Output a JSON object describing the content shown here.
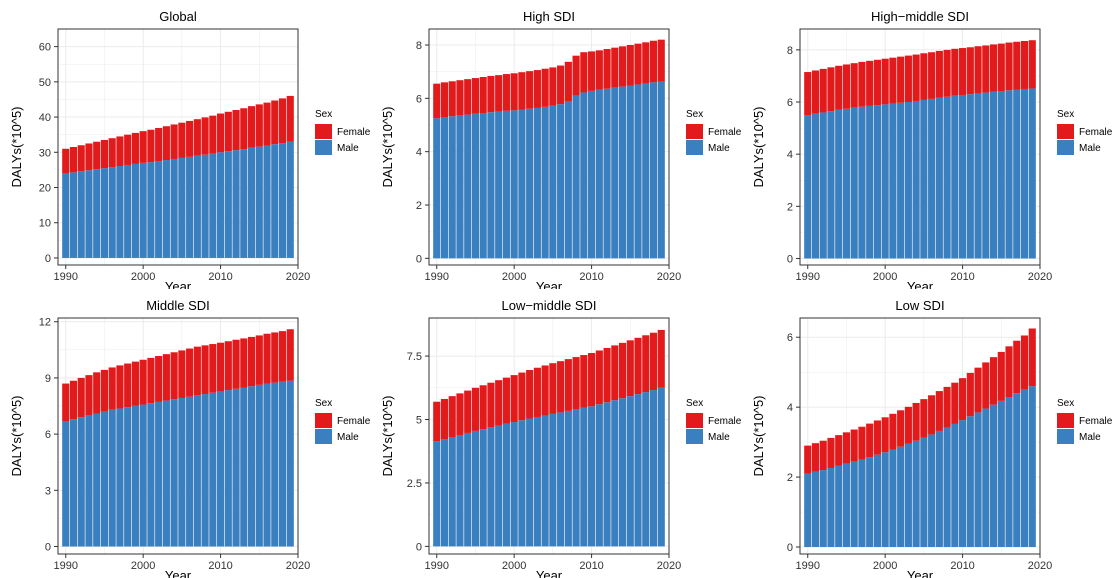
{
  "colors": {
    "female": "#e31a1c",
    "male": "#3a7fbf",
    "grid": "#ebebeb",
    "panel_border": "#333333"
  },
  "legend": {
    "title": "Sex",
    "labels": [
      "Female",
      "Male"
    ]
  },
  "chart_data": [
    {
      "type": "bar",
      "stacked": true,
      "title": "Global",
      "xlabel": "Year",
      "ylabel": "DALYs(*10^5)",
      "xlim": [
        1989,
        2020
      ],
      "ylim": [
        -2,
        65
      ],
      "xticks": [
        1990,
        2000,
        2010,
        2020
      ],
      "yticks": [
        0,
        10,
        20,
        30,
        40,
        50,
        60
      ],
      "ytick_labels": [
        "0",
        "10",
        "20",
        "30",
        "40",
        "50",
        "60"
      ],
      "x": [
        1990,
        1991,
        1992,
        1993,
        1994,
        1995,
        1996,
        1997,
        1998,
        1999,
        2000,
        2001,
        2002,
        2003,
        2004,
        2005,
        2006,
        2007,
        2008,
        2009,
        2010,
        2011,
        2012,
        2013,
        2014,
        2015,
        2016,
        2017,
        2018,
        2019
      ],
      "series": [
        {
          "name": "Male",
          "values": [
            24.0,
            24.3,
            24.6,
            24.9,
            25.2,
            25.5,
            25.8,
            26.1,
            26.4,
            26.7,
            27.0,
            27.2,
            27.5,
            27.8,
            28.1,
            28.4,
            28.7,
            29.0,
            29.3,
            29.6,
            30.0,
            30.3,
            30.6,
            30.9,
            31.3,
            31.6,
            31.9,
            32.3,
            32.6,
            33.0
          ]
        },
        {
          "name": "Female",
          "values": [
            7.0,
            7.2,
            7.4,
            7.6,
            7.8,
            8.0,
            8.2,
            8.4,
            8.6,
            8.8,
            9.0,
            9.2,
            9.4,
            9.6,
            9.8,
            10.0,
            10.2,
            10.4,
            10.6,
            10.8,
            11.0,
            11.2,
            11.4,
            11.6,
            11.8,
            12.0,
            12.2,
            12.4,
            12.7,
            13.0
          ]
        }
      ]
    },
    {
      "type": "bar",
      "stacked": true,
      "title": "High SDI",
      "xlabel": "Year",
      "ylabel": "DALYs(*10^5)",
      "xlim": [
        1989,
        2020
      ],
      "ylim": [
        -0.25,
        8.6
      ],
      "xticks": [
        1990,
        2000,
        2010,
        2020
      ],
      "yticks": [
        0,
        2,
        4,
        6,
        8
      ],
      "ytick_labels": [
        "0",
        "2",
        "4",
        "6",
        "8"
      ],
      "x": [
        1990,
        1991,
        1992,
        1993,
        1994,
        1995,
        1996,
        1997,
        1998,
        1999,
        2000,
        2001,
        2002,
        2003,
        2004,
        2005,
        2006,
        2007,
        2008,
        2009,
        2010,
        2011,
        2012,
        2013,
        2014,
        2015,
        2016,
        2017,
        2018,
        2019
      ],
      "series": [
        {
          "name": "Male",
          "values": [
            5.25,
            5.3,
            5.33,
            5.36,
            5.39,
            5.42,
            5.45,
            5.48,
            5.5,
            5.53,
            5.55,
            5.58,
            5.61,
            5.64,
            5.68,
            5.72,
            5.78,
            5.9,
            6.1,
            6.22,
            6.28,
            6.32,
            6.36,
            6.4,
            6.44,
            6.48,
            6.52,
            6.56,
            6.6,
            6.62
          ]
        },
        {
          "name": "Female",
          "values": [
            1.3,
            1.3,
            1.31,
            1.32,
            1.33,
            1.34,
            1.35,
            1.36,
            1.37,
            1.38,
            1.39,
            1.4,
            1.41,
            1.42,
            1.43,
            1.44,
            1.45,
            1.47,
            1.5,
            1.51,
            1.48,
            1.48,
            1.49,
            1.5,
            1.51,
            1.52,
            1.53,
            1.54,
            1.56,
            1.58
          ]
        }
      ]
    },
    {
      "type": "bar",
      "stacked": true,
      "title": "High−middle SDI",
      "xlabel": "Year",
      "ylabel": "DALYs(*10^5)",
      "xlim": [
        1989,
        2020
      ],
      "ylim": [
        -0.25,
        8.8
      ],
      "xticks": [
        1990,
        2000,
        2010,
        2020
      ],
      "yticks": [
        0,
        2,
        4,
        6,
        8
      ],
      "ytick_labels": [
        "0",
        "2",
        "4",
        "6",
        "8"
      ],
      "x": [
        1990,
        1991,
        1992,
        1993,
        1994,
        1995,
        1996,
        1997,
        1998,
        1999,
        2000,
        2001,
        2002,
        2003,
        2004,
        2005,
        2006,
        2007,
        2008,
        2009,
        2010,
        2011,
        2012,
        2013,
        2014,
        2015,
        2016,
        2017,
        2018,
        2019
      ],
      "series": [
        {
          "name": "Male",
          "values": [
            5.5,
            5.55,
            5.6,
            5.65,
            5.7,
            5.74,
            5.78,
            5.82,
            5.85,
            5.88,
            5.91,
            5.94,
            5.97,
            6.0,
            6.04,
            6.08,
            6.12,
            6.16,
            6.2,
            6.24,
            6.27,
            6.3,
            6.33,
            6.36,
            6.39,
            6.42,
            6.45,
            6.48,
            6.5,
            6.52
          ]
        },
        {
          "name": "Female",
          "values": [
            1.65,
            1.66,
            1.67,
            1.68,
            1.69,
            1.7,
            1.71,
            1.72,
            1.73,
            1.74,
            1.75,
            1.76,
            1.77,
            1.78,
            1.78,
            1.79,
            1.79,
            1.8,
            1.8,
            1.8,
            1.8,
            1.8,
            1.81,
            1.81,
            1.82,
            1.82,
            1.83,
            1.83,
            1.84,
            1.85
          ]
        }
      ]
    },
    {
      "type": "bar",
      "stacked": true,
      "title": "Middle SDI",
      "xlabel": "Year",
      "ylabel": "DALYs(*10^5)",
      "xlim": [
        1989,
        2020
      ],
      "ylim": [
        -0.4,
        12.2
      ],
      "xticks": [
        1990,
        2000,
        2010,
        2020
      ],
      "yticks": [
        0,
        3,
        6,
        9,
        12
      ],
      "ytick_labels": [
        "0",
        "3",
        "6",
        "9",
        "12"
      ],
      "x": [
        1990,
        1991,
        1992,
        1993,
        1994,
        1995,
        1996,
        1997,
        1998,
        1999,
        2000,
        2001,
        2002,
        2003,
        2004,
        2005,
        2006,
        2007,
        2008,
        2009,
        2010,
        2011,
        2012,
        2013,
        2014,
        2015,
        2016,
        2017,
        2018,
        2019
      ],
      "series": [
        {
          "name": "Male",
          "values": [
            6.7,
            6.8,
            6.9,
            7.0,
            7.1,
            7.2,
            7.3,
            7.37,
            7.44,
            7.51,
            7.58,
            7.65,
            7.72,
            7.79,
            7.86,
            7.93,
            8.0,
            8.07,
            8.14,
            8.21,
            8.28,
            8.35,
            8.42,
            8.49,
            8.56,
            8.63,
            8.7,
            8.75,
            8.8,
            8.85
          ]
        },
        {
          "name": "Female",
          "values": [
            2.0,
            2.05,
            2.1,
            2.15,
            2.2,
            2.23,
            2.26,
            2.3,
            2.33,
            2.36,
            2.39,
            2.42,
            2.45,
            2.48,
            2.51,
            2.54,
            2.57,
            2.6,
            2.6,
            2.6,
            2.6,
            2.61,
            2.62,
            2.62,
            2.63,
            2.64,
            2.66,
            2.68,
            2.7,
            2.75
          ]
        }
      ]
    },
    {
      "type": "bar",
      "stacked": true,
      "title": "Low−middle SDI",
      "xlabel": "Year",
      "ylabel": "DALYs(*10^5)",
      "xlim": [
        1989,
        2020
      ],
      "ylim": [
        -0.3,
        9.0
      ],
      "xticks": [
        1990,
        2000,
        2010,
        2020
      ],
      "yticks": [
        0,
        2.5,
        5,
        7.5
      ],
      "ytick_labels": [
        "0",
        "2.5",
        "5",
        "7.5"
      ],
      "x": [
        1990,
        1991,
        1992,
        1993,
        1994,
        1995,
        1996,
        1997,
        1998,
        1999,
        2000,
        2001,
        2002,
        2003,
        2004,
        2005,
        2006,
        2007,
        2008,
        2009,
        2010,
        2011,
        2012,
        2013,
        2014,
        2015,
        2016,
        2017,
        2018,
        2019
      ],
      "series": [
        {
          "name": "Male",
          "values": [
            4.15,
            4.23,
            4.31,
            4.39,
            4.47,
            4.55,
            4.62,
            4.69,
            4.76,
            4.83,
            4.9,
            4.97,
            5.04,
            5.1,
            5.16,
            5.22,
            5.28,
            5.34,
            5.4,
            5.46,
            5.52,
            5.6,
            5.68,
            5.76,
            5.84,
            5.92,
            6.0,
            6.08,
            6.16,
            6.25
          ]
        },
        {
          "name": "Female",
          "values": [
            1.55,
            1.58,
            1.61,
            1.64,
            1.67,
            1.7,
            1.73,
            1.76,
            1.79,
            1.82,
            1.85,
            1.88,
            1.91,
            1.94,
            1.97,
            2.0,
            2.02,
            2.04,
            2.06,
            2.08,
            2.1,
            2.12,
            2.14,
            2.16,
            2.18,
            2.2,
            2.22,
            2.24,
            2.26,
            2.28
          ]
        }
      ]
    },
    {
      "type": "bar",
      "stacked": true,
      "title": "Low SDI",
      "xlabel": "Year",
      "ylabel": "DALYs(*10^5)",
      "xlim": [
        1989,
        2020
      ],
      "ylim": [
        -0.2,
        6.55
      ],
      "xticks": [
        1990,
        2000,
        2010,
        2020
      ],
      "yticks": [
        0,
        2,
        4,
        6
      ],
      "ytick_labels": [
        "0",
        "2",
        "4",
        "6"
      ],
      "x": [
        1990,
        1991,
        1992,
        1993,
        1994,
        1995,
        1996,
        1997,
        1998,
        1999,
        2000,
        2001,
        2002,
        2003,
        2004,
        2005,
        2006,
        2007,
        2008,
        2009,
        2010,
        2011,
        2012,
        2013,
        2014,
        2015,
        2016,
        2017,
        2018,
        2019
      ],
      "series": [
        {
          "name": "Male",
          "values": [
            2.1,
            2.15,
            2.2,
            2.26,
            2.32,
            2.38,
            2.44,
            2.5,
            2.57,
            2.64,
            2.71,
            2.79,
            2.87,
            2.95,
            3.04,
            3.13,
            3.22,
            3.32,
            3.42,
            3.52,
            3.63,
            3.74,
            3.85,
            3.96,
            4.07,
            4.18,
            4.29,
            4.4,
            4.5,
            4.6
          ]
        },
        {
          "name": "Female",
          "values": [
            0.8,
            0.82,
            0.84,
            0.86,
            0.88,
            0.9,
            0.92,
            0.94,
            0.96,
            0.98,
            1.0,
            1.02,
            1.04,
            1.06,
            1.08,
            1.1,
            1.12,
            1.14,
            1.16,
            1.18,
            1.2,
            1.24,
            1.28,
            1.32,
            1.36,
            1.4,
            1.45,
            1.5,
            1.55,
            1.65
          ]
        }
      ]
    }
  ]
}
